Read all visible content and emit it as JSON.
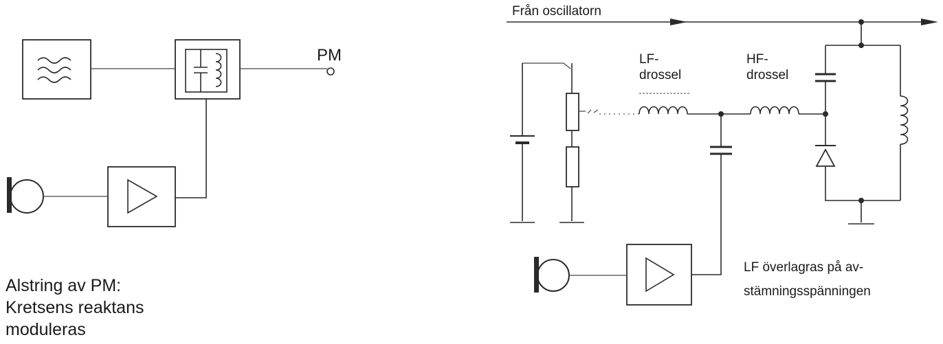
{
  "left": {
    "output_label": "PM",
    "caption_lines": [
      "Alstring av PM:",
      "Kretsens reaktans",
      "moduleras"
    ]
  },
  "right": {
    "top_label": "Från oscillatorn",
    "lf_choke_lines": [
      "LF-",
      "drossel"
    ],
    "hf_choke_lines": [
      "HF-",
      "drossel"
    ],
    "note_lines": [
      "LF överlagras på av-",
      "stämningsspänningen"
    ]
  },
  "icons": [
    "oscillator-waves-icon",
    "tank-circuit-icon",
    "amplifier-triangle-icon",
    "microphone-icon",
    "varactor-diode-icon",
    "inductor-coil-icon",
    "capacitor-icon",
    "resistor-icon",
    "battery-icon",
    "ground-icon",
    "arrow-right-icon"
  ]
}
